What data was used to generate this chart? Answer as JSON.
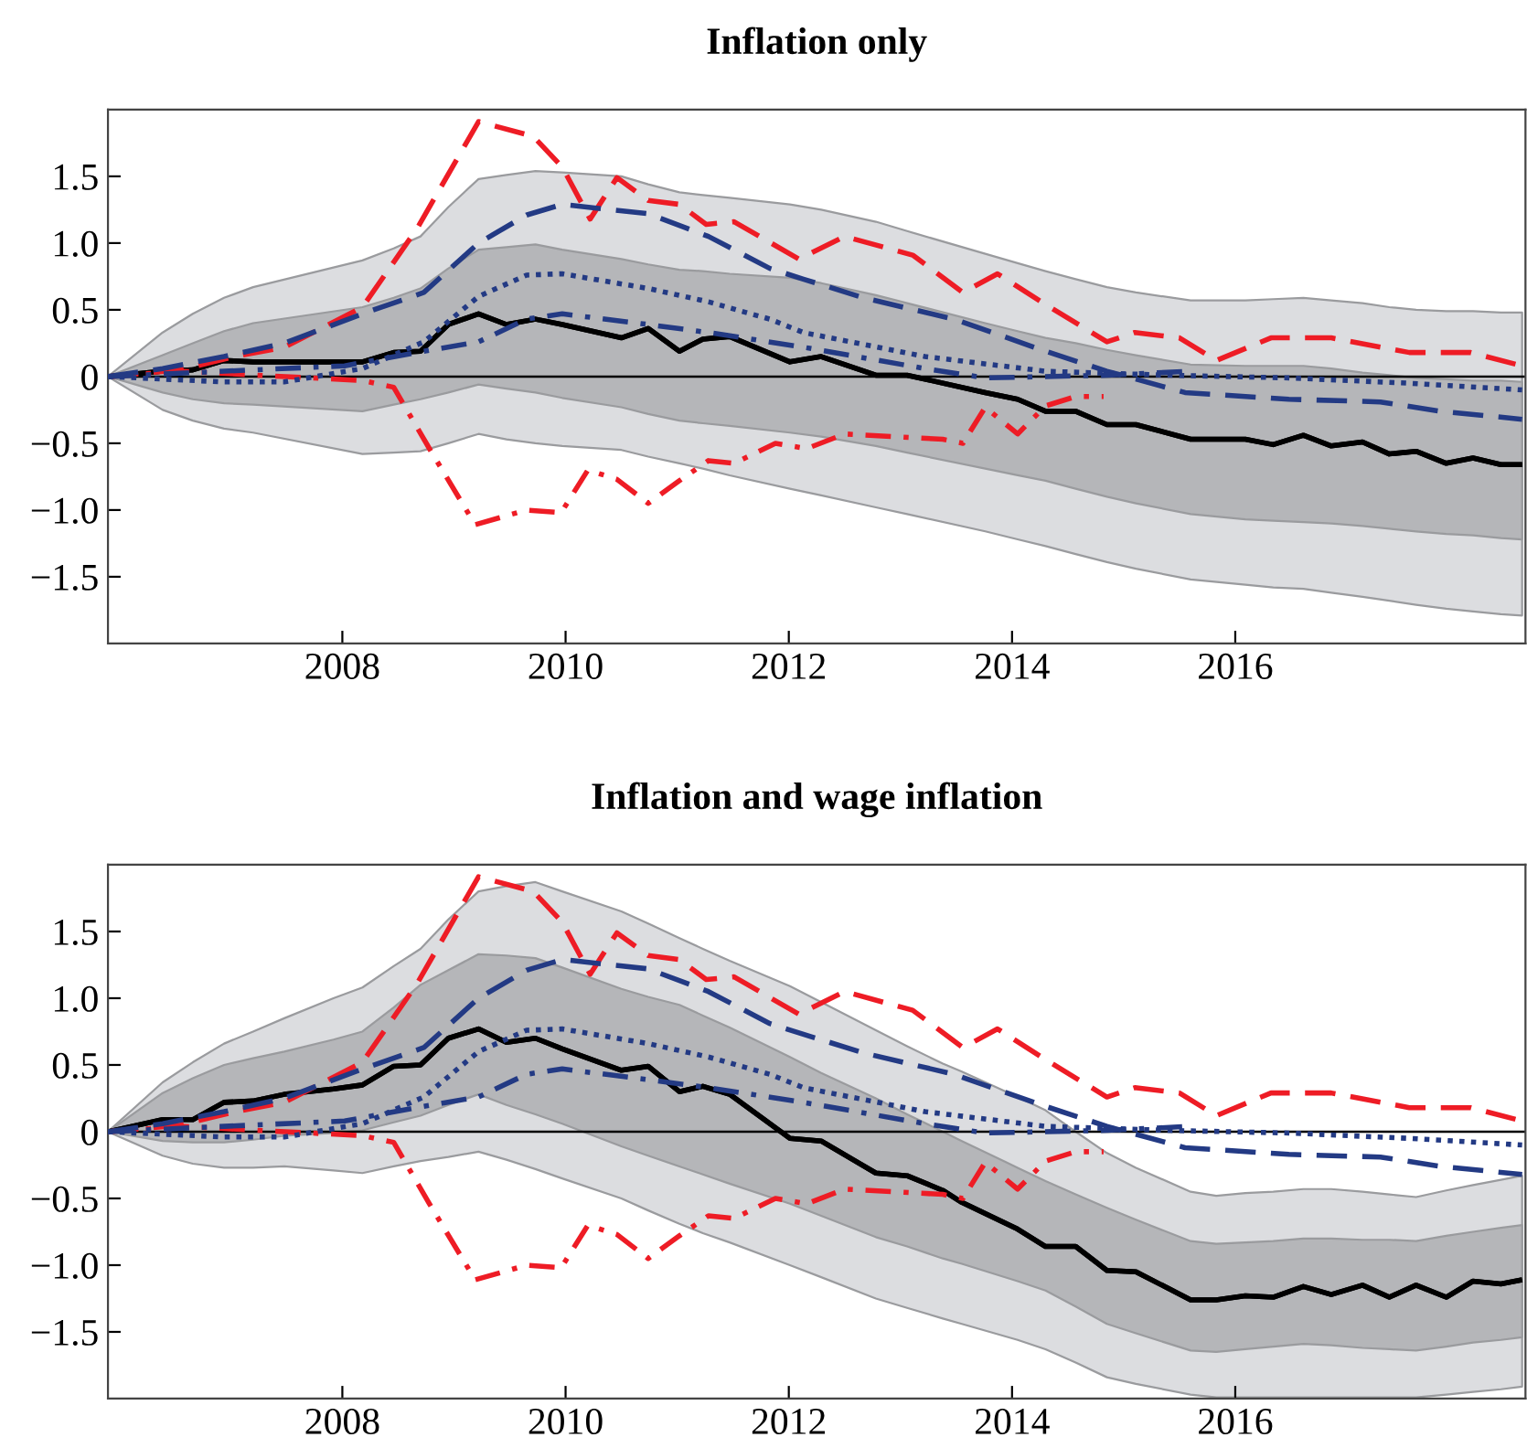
{
  "chart_data": [
    {
      "type": "line",
      "title": "Inflation only",
      "xlim": [
        2005.9,
        2018.6
      ],
      "ylim": [
        -2,
        2
      ],
      "xticks": [
        2008,
        2010,
        2012,
        2014,
        2016
      ],
      "yticks": [
        {
          "value": -1.5,
          "label": "−1.5"
        },
        {
          "value": -1,
          "label": "−1.0"
        },
        {
          "value": -0.5,
          "label": "−0.5"
        },
        0,
        {
          "value": 0.5,
          "label": "0.5"
        },
        {
          "value": 1,
          "label": "1.0"
        },
        {
          "value": 1.5,
          "label": "1.5"
        }
      ],
      "grid": false,
      "ref_lines": [
        {
          "axis": "y",
          "value": 0,
          "color": "#000000"
        }
      ],
      "series": [
        {
          "type": "line",
          "color": "#000000",
          "line_style": "solid",
          "x": [
            2005.9,
            2006.39,
            2006.66,
            2006.94,
            2007.2,
            2008.18,
            2008.46,
            2008.7,
            2008.95,
            2009.22,
            2009.47,
            2009.73,
            2009.97,
            2010.5,
            2010.74,
            2011.02,
            2011.23,
            2011.47,
            2012.01,
            2012.29,
            2012.78,
            2013.06,
            2013.76,
            2014.05,
            2014.3,
            2014.57,
            2014.85,
            2015.11,
            2015.6,
            2016.09,
            2016.34,
            2016.61,
            2016.86,
            2017.14,
            2017.38,
            2017.62,
            2017.89,
            2018.13,
            2018.38,
            2018.57
          ],
          "values": [
            0,
            0.04,
            0.05,
            0.12,
            0.11,
            0.11,
            0.18,
            0.19,
            0.39,
            0.47,
            0.39,
            0.43,
            0.39,
            0.29,
            0.36,
            0.19,
            0.28,
            0.3,
            0.11,
            0.15,
            0.01,
            0.01,
            -0.12,
            -0.17,
            -0.26,
            -0.26,
            -0.36,
            -0.36,
            -0.47,
            -0.47,
            -0.51,
            -0.44,
            -0.52,
            -0.49,
            -0.58,
            -0.56,
            -0.65,
            -0.61,
            -0.66,
            -0.66
          ],
          "lower": [
            0,
            -0.25,
            -0.33,
            -0.39,
            -0.42,
            -0.58,
            -0.57,
            -0.56,
            -0.5,
            -0.43,
            -0.47,
            -0.5,
            -0.52,
            -0.55,
            -0.6,
            -0.65,
            -0.69,
            -0.74,
            -0.84,
            -0.89,
            -0.98,
            -1.03,
            -1.16,
            -1.22,
            -1.27,
            -1.33,
            -1.39,
            -1.44,
            -1.52,
            -1.56,
            -1.58,
            -1.59,
            -1.62,
            -1.65,
            -1.68,
            -1.71,
            -1.74,
            -1.76,
            -1.78,
            -1.79
          ],
          "upper": [
            0,
            0.33,
            0.47,
            0.59,
            0.67,
            0.87,
            0.96,
            1.05,
            1.27,
            1.48,
            1.51,
            1.54,
            1.53,
            1.5,
            1.44,
            1.38,
            1.36,
            1.34,
            1.29,
            1.25,
            1.16,
            1.09,
            0.92,
            0.85,
            0.79,
            0.73,
            0.67,
            0.63,
            0.57,
            0.57,
            0.58,
            0.59,
            0.57,
            0.55,
            0.52,
            0.5,
            0.49,
            0.49,
            0.48,
            0.48
          ]
        },
        {
          "type": "line",
          "color": "#000000",
          "line_style": "solid",
          "x": [
            2005.9,
            2006.39,
            2006.66,
            2006.94,
            2007.2,
            2008.18,
            2008.46,
            2008.7,
            2008.95,
            2009.22,
            2009.47,
            2009.73,
            2009.97,
            2010.5,
            2010.74,
            2011.02,
            2011.23,
            2011.47,
            2012.01,
            2012.29,
            2012.78,
            2013.06,
            2013.76,
            2014.05,
            2014.3,
            2014.57,
            2014.85,
            2015.11,
            2015.6,
            2016.09,
            2016.34,
            2016.61,
            2016.86,
            2017.14,
            2017.38,
            2017.62,
            2017.89,
            2018.13,
            2018.38,
            2018.57
          ],
          "values": [
            0,
            0.04,
            0.05,
            0.12,
            0.11,
            0.11,
            0.18,
            0.19,
            0.39,
            0.47,
            0.39,
            0.43,
            0.39,
            0.29,
            0.36,
            0.19,
            0.28,
            0.3,
            0.11,
            0.15,
            0.01,
            0.01,
            -0.12,
            -0.17,
            -0.26,
            -0.26,
            -0.36,
            -0.36,
            -0.47,
            -0.47,
            -0.51,
            -0.44,
            -0.52,
            -0.49,
            -0.58,
            -0.56,
            -0.65,
            -0.61,
            -0.66,
            -0.66
          ],
          "lower": [
            0,
            -0.12,
            -0.17,
            -0.2,
            -0.21,
            -0.26,
            -0.21,
            -0.17,
            -0.12,
            -0.06,
            -0.09,
            -0.12,
            -0.16,
            -0.23,
            -0.28,
            -0.33,
            -0.35,
            -0.37,
            -0.42,
            -0.45,
            -0.52,
            -0.57,
            -0.69,
            -0.74,
            -0.78,
            -0.84,
            -0.9,
            -0.95,
            -1.03,
            -1.07,
            -1.08,
            -1.09,
            -1.1,
            -1.12,
            -1.14,
            -1.16,
            -1.18,
            -1.19,
            -1.21,
            -1.22
          ],
          "upper": [
            0,
            0.16,
            0.25,
            0.34,
            0.4,
            0.52,
            0.59,
            0.66,
            0.81,
            0.95,
            0.97,
            0.99,
            0.95,
            0.88,
            0.84,
            0.8,
            0.79,
            0.77,
            0.74,
            0.7,
            0.61,
            0.55,
            0.4,
            0.34,
            0.29,
            0.25,
            0.2,
            0.16,
            0.09,
            0.08,
            0.08,
            0.08,
            0.06,
            0.03,
            0.01,
            -0.01,
            -0.02,
            -0.03,
            -0.03,
            -0.04
          ]
        },
        {
          "type": "line",
          "color": "#ee1c25",
          "line_style": "dashed",
          "x": [
            2005.9,
            2006.55,
            2007.04,
            2007.48,
            2008.18,
            2008.67,
            2009.22,
            2009.71,
            2009.97,
            2010.22,
            2010.46,
            2010.74,
            2011.02,
            2011.26,
            2011.51,
            2012.09,
            2012.5,
            2013.11,
            2013.56,
            2013.87,
            2014.3,
            2014.85,
            2015.1,
            2015.5,
            2015.83,
            2016.32,
            2016.86,
            2017.56,
            2018.11,
            2018.57
          ],
          "values": [
            0,
            0.05,
            0.15,
            0.22,
            0.52,
            1.11,
            1.91,
            1.8,
            1.57,
            1.18,
            1.49,
            1.32,
            1.29,
            1.14,
            1.16,
            0.88,
            1.05,
            0.91,
            0.63,
            0.77,
            0.54,
            0.26,
            0.33,
            0.29,
            0.12,
            0.29,
            0.29,
            0.18,
            0.18,
            0.08
          ]
        },
        {
          "type": "line",
          "color": "#ee1c25",
          "line_style": "dashdot",
          "x": [
            2005.9,
            2006.55,
            2008.18,
            2008.46,
            2008.78,
            2009.19,
            2009.65,
            2009.96,
            2010.2,
            2010.46,
            2010.74,
            2011.02,
            2011.28,
            2011.51,
            2011.88,
            2012.16,
            2012.5,
            2013.38,
            2013.56,
            2013.76,
            2014.05,
            2014.3,
            2014.57,
            2014.82
          ],
          "values": [
            0,
            0.04,
            -0.03,
            -0.08,
            -0.54,
            -1.11,
            -1.0,
            -1.02,
            -0.7,
            -0.77,
            -0.95,
            -0.78,
            -0.63,
            -0.65,
            -0.5,
            -0.54,
            -0.43,
            -0.47,
            -0.5,
            -0.23,
            -0.43,
            -0.22,
            -0.15,
            -0.15
          ]
        },
        {
          "type": "line",
          "color": "#233a84",
          "line_style": "dashed",
          "x": [
            2005.9,
            2006.39,
            2006.94,
            2007.48,
            2008.18,
            2008.73,
            2009.22,
            2009.65,
            2009.97,
            2010.74,
            2011.28,
            2011.83,
            2012.13,
            2012.67,
            2013.48,
            2014.3,
            2014.85,
            2015.55,
            2016.48,
            2017.3,
            2017.84,
            2018.57
          ],
          "values": [
            0,
            0.06,
            0.15,
            0.25,
            0.47,
            0.63,
            1.0,
            1.21,
            1.29,
            1.22,
            1.05,
            0.81,
            0.73,
            0.59,
            0.43,
            0.19,
            0.04,
            -0.12,
            -0.17,
            -0.19,
            -0.26,
            -0.32
          ]
        },
        {
          "type": "line",
          "color": "#233a84",
          "line_style": "dotted",
          "x": [
            2005.9,
            2006.94,
            2007.48,
            2008.18,
            2008.73,
            2009.22,
            2009.65,
            2009.97,
            2010.74,
            2011.28,
            2011.83,
            2012.13,
            2013.22,
            2014.3,
            2015.39,
            2016.48,
            2017.56,
            2018.57
          ],
          "values": [
            0,
            -0.04,
            -0.04,
            0.06,
            0.26,
            0.6,
            0.76,
            0.77,
            0.66,
            0.56,
            0.43,
            0.33,
            0.15,
            0.04,
            0.01,
            -0.01,
            -0.05,
            -0.1
          ]
        },
        {
          "type": "line",
          "color": "#233a84",
          "line_style": "dashdot",
          "x": [
            2005.9,
            2006.94,
            2008.02,
            2008.73,
            2009.22,
            2009.65,
            2009.97,
            2010.74,
            2011.28,
            2012.13,
            2013.22,
            2013.76,
            2014.85,
            2015.6
          ],
          "values": [
            0,
            0.04,
            0.08,
            0.19,
            0.26,
            0.43,
            0.47,
            0.39,
            0.33,
            0.22,
            0.06,
            -0.01,
            0.01,
            0.04
          ]
        }
      ]
    },
    {
      "type": "line",
      "title": "Inflation and wage inflation",
      "xlim": [
        2005.9,
        2018.6
      ],
      "ylim": [
        -2,
        2
      ],
      "xticks": [
        2008,
        2010,
        2012,
        2014,
        2016
      ],
      "yticks": [
        {
          "value": -1.5,
          "label": "−1.5"
        },
        {
          "value": -1,
          "label": "−1.0"
        },
        {
          "value": -0.5,
          "label": "−0.5"
        },
        0,
        {
          "value": 0.5,
          "label": "0.5"
        },
        {
          "value": 1,
          "label": "1.0"
        },
        {
          "value": 1.5,
          "label": "1.5"
        }
      ],
      "grid": false,
      "ref_lines": [
        {
          "axis": "y",
          "value": 0,
          "color": "#000000"
        }
      ],
      "series": [
        {
          "type": "line",
          "color": "#000000",
          "line_style": "solid",
          "x": [
            2005.9,
            2006.39,
            2006.66,
            2006.94,
            2007.2,
            2007.48,
            2007.92,
            2008.18,
            2008.46,
            2008.7,
            2008.95,
            2009.22,
            2009.47,
            2009.73,
            2009.97,
            2010.5,
            2010.74,
            2011.02,
            2011.23,
            2011.47,
            2012.01,
            2012.29,
            2012.78,
            2013.06,
            2013.38,
            2013.55,
            2014.05,
            2014.3,
            2014.57,
            2014.85,
            2015.11,
            2015.6,
            2015.83,
            2016.09,
            2016.34,
            2016.61,
            2016.86,
            2017.14,
            2017.38,
            2017.62,
            2017.89,
            2018.13,
            2018.38,
            2018.57
          ],
          "values": [
            0,
            0.09,
            0.09,
            0.22,
            0.23,
            0.28,
            0.32,
            0.35,
            0.49,
            0.5,
            0.7,
            0.77,
            0.67,
            0.7,
            0.62,
            0.46,
            0.49,
            0.3,
            0.34,
            0.28,
            -0.05,
            -0.07,
            -0.31,
            -0.33,
            -0.44,
            -0.53,
            -0.73,
            -0.86,
            -0.86,
            -1.04,
            -1.05,
            -1.26,
            -1.26,
            -1.23,
            -1.24,
            -1.16,
            -1.22,
            -1.15,
            -1.24,
            -1.15,
            -1.24,
            -1.12,
            -1.14,
            -1.11
          ],
          "lower": [
            0,
            -0.18,
            -0.24,
            -0.27,
            -0.27,
            -0.26,
            -0.29,
            -0.31,
            -0.26,
            -0.22,
            -0.19,
            -0.15,
            -0.21,
            -0.28,
            -0.35,
            -0.5,
            -0.59,
            -0.69,
            -0.76,
            -0.83,
            -1.0,
            -1.09,
            -1.25,
            -1.32,
            -1.4,
            -1.44,
            -1.56,
            -1.63,
            -1.73,
            -1.84,
            -1.89,
            -1.97,
            -1.99,
            -1.99,
            -1.99,
            -1.99,
            -1.99,
            -1.99,
            -1.99,
            -1.99,
            -1.97,
            -1.95,
            -1.93,
            -1.91
          ],
          "upper": [
            0,
            0.37,
            0.52,
            0.66,
            0.75,
            0.85,
            1.0,
            1.08,
            1.24,
            1.37,
            1.59,
            1.8,
            1.84,
            1.87,
            1.8,
            1.65,
            1.56,
            1.45,
            1.37,
            1.28,
            1.09,
            0.97,
            0.76,
            0.64,
            0.51,
            0.45,
            0.26,
            0.16,
            0.0,
            -0.16,
            -0.27,
            -0.45,
            -0.48,
            -0.46,
            -0.45,
            -0.43,
            -0.43,
            -0.45,
            -0.47,
            -0.49,
            -0.44,
            -0.4,
            -0.36,
            -0.33
          ]
        },
        {
          "type": "line",
          "color": "#000000",
          "line_style": "solid",
          "x": [
            2005.9,
            2006.39,
            2006.66,
            2006.94,
            2007.2,
            2007.48,
            2007.92,
            2008.18,
            2008.46,
            2008.7,
            2008.95,
            2009.22,
            2009.47,
            2009.73,
            2009.97,
            2010.5,
            2010.74,
            2011.02,
            2011.23,
            2011.47,
            2012.01,
            2012.29,
            2012.78,
            2013.06,
            2013.38,
            2013.55,
            2014.05,
            2014.3,
            2014.57,
            2014.85,
            2015.11,
            2015.6,
            2015.83,
            2016.09,
            2016.34,
            2016.61,
            2016.86,
            2017.14,
            2017.38,
            2017.62,
            2017.89,
            2018.13,
            2018.38,
            2018.57
          ],
          "values": [
            0,
            0.09,
            0.09,
            0.22,
            0.23,
            0.28,
            0.32,
            0.35,
            0.49,
            0.5,
            0.7,
            0.77,
            0.67,
            0.7,
            0.62,
            0.46,
            0.49,
            0.3,
            0.34,
            0.28,
            -0.05,
            -0.07,
            -0.31,
            -0.33,
            -0.44,
            -0.53,
            -0.73,
            -0.86,
            -0.86,
            -1.04,
            -1.05,
            -1.26,
            -1.26,
            -1.23,
            -1.24,
            -1.16,
            -1.22,
            -1.15,
            -1.24,
            -1.15,
            -1.24,
            -1.12,
            -1.14,
            -1.11
          ],
          "lower": [
            0,
            -0.07,
            -0.08,
            -0.08,
            -0.06,
            -0.03,
            -0.01,
            0.01,
            0.07,
            0.12,
            0.2,
            0.28,
            0.2,
            0.13,
            0.06,
            -0.11,
            -0.18,
            -0.26,
            -0.32,
            -0.39,
            -0.54,
            -0.63,
            -0.79,
            -0.86,
            -0.95,
            -0.99,
            -1.12,
            -1.19,
            -1.31,
            -1.44,
            -1.51,
            -1.64,
            -1.65,
            -1.63,
            -1.61,
            -1.59,
            -1.6,
            -1.62,
            -1.63,
            -1.64,
            -1.61,
            -1.58,
            -1.56,
            -1.54
          ],
          "upper": [
            0,
            0.29,
            0.4,
            0.5,
            0.55,
            0.6,
            0.69,
            0.75,
            0.93,
            1.1,
            1.21,
            1.33,
            1.32,
            1.3,
            1.23,
            1.07,
            1.01,
            0.95,
            0.87,
            0.78,
            0.56,
            0.44,
            0.25,
            0.13,
            0.0,
            -0.07,
            -0.27,
            -0.37,
            -0.47,
            -0.57,
            -0.66,
            -0.82,
            -0.84,
            -0.83,
            -0.82,
            -0.8,
            -0.8,
            -0.81,
            -0.81,
            -0.82,
            -0.78,
            -0.75,
            -0.72,
            -0.7
          ]
        },
        {
          "type": "line",
          "color": "#ee1c25",
          "line_style": "dashed",
          "x": [
            2005.9,
            2006.55,
            2007.04,
            2007.48,
            2008.18,
            2008.67,
            2009.22,
            2009.71,
            2009.97,
            2010.22,
            2010.46,
            2010.74,
            2011.02,
            2011.26,
            2011.51,
            2012.09,
            2012.5,
            2013.11,
            2013.56,
            2013.87,
            2014.3,
            2014.85,
            2015.1,
            2015.5,
            2015.83,
            2016.32,
            2016.86,
            2017.56,
            2018.11,
            2018.57
          ],
          "values": [
            0,
            0.05,
            0.15,
            0.22,
            0.52,
            1.11,
            1.91,
            1.8,
            1.57,
            1.18,
            1.49,
            1.32,
            1.29,
            1.14,
            1.16,
            0.88,
            1.05,
            0.91,
            0.63,
            0.77,
            0.54,
            0.26,
            0.33,
            0.29,
            0.12,
            0.29,
            0.29,
            0.18,
            0.18,
            0.08
          ]
        },
        {
          "type": "line",
          "color": "#ee1c25",
          "line_style": "dashdot",
          "x": [
            2005.9,
            2006.55,
            2008.18,
            2008.46,
            2008.78,
            2009.19,
            2009.65,
            2009.96,
            2010.2,
            2010.46,
            2010.74,
            2011.02,
            2011.28,
            2011.51,
            2011.88,
            2012.16,
            2012.5,
            2013.38,
            2013.56,
            2013.76,
            2014.05,
            2014.3,
            2014.57,
            2014.82
          ],
          "values": [
            0,
            0.04,
            -0.03,
            -0.08,
            -0.54,
            -1.11,
            -1.0,
            -1.02,
            -0.7,
            -0.77,
            -0.95,
            -0.78,
            -0.63,
            -0.65,
            -0.5,
            -0.54,
            -0.43,
            -0.47,
            -0.5,
            -0.23,
            -0.43,
            -0.22,
            -0.15,
            -0.15
          ]
        },
        {
          "type": "line",
          "color": "#233a84",
          "line_style": "dashed",
          "x": [
            2005.9,
            2006.39,
            2006.94,
            2007.48,
            2008.18,
            2008.73,
            2009.22,
            2009.65,
            2009.97,
            2010.74,
            2011.28,
            2011.83,
            2012.13,
            2012.67,
            2013.48,
            2014.3,
            2014.85,
            2015.55,
            2016.48,
            2017.3,
            2017.84,
            2018.57
          ],
          "values": [
            0,
            0.06,
            0.15,
            0.25,
            0.47,
            0.63,
            1.0,
            1.21,
            1.29,
            1.22,
            1.05,
            0.81,
            0.73,
            0.59,
            0.43,
            0.19,
            0.04,
            -0.12,
            -0.17,
            -0.19,
            -0.26,
            -0.32
          ]
        },
        {
          "type": "line",
          "color": "#233a84",
          "line_style": "dotted",
          "x": [
            2005.9,
            2006.94,
            2007.48,
            2008.18,
            2008.73,
            2009.22,
            2009.65,
            2009.97,
            2010.74,
            2011.28,
            2011.83,
            2012.13,
            2013.22,
            2014.3,
            2015.39,
            2016.48,
            2017.56,
            2018.57
          ],
          "values": [
            0,
            -0.04,
            -0.04,
            0.06,
            0.26,
            0.6,
            0.76,
            0.77,
            0.66,
            0.56,
            0.43,
            0.33,
            0.15,
            0.04,
            0.01,
            -0.01,
            -0.05,
            -0.1
          ]
        },
        {
          "type": "line",
          "color": "#233a84",
          "line_style": "dashdot",
          "x": [
            2005.9,
            2006.94,
            2008.02,
            2008.73,
            2009.22,
            2009.65,
            2009.97,
            2010.74,
            2011.28,
            2012.13,
            2013.22,
            2013.76,
            2014.85,
            2015.6
          ],
          "values": [
            0,
            0.04,
            0.08,
            0.19,
            0.26,
            0.43,
            0.47,
            0.39,
            0.33,
            0.22,
            0.06,
            -0.01,
            0.01,
            0.04
          ]
        }
      ]
    }
  ]
}
